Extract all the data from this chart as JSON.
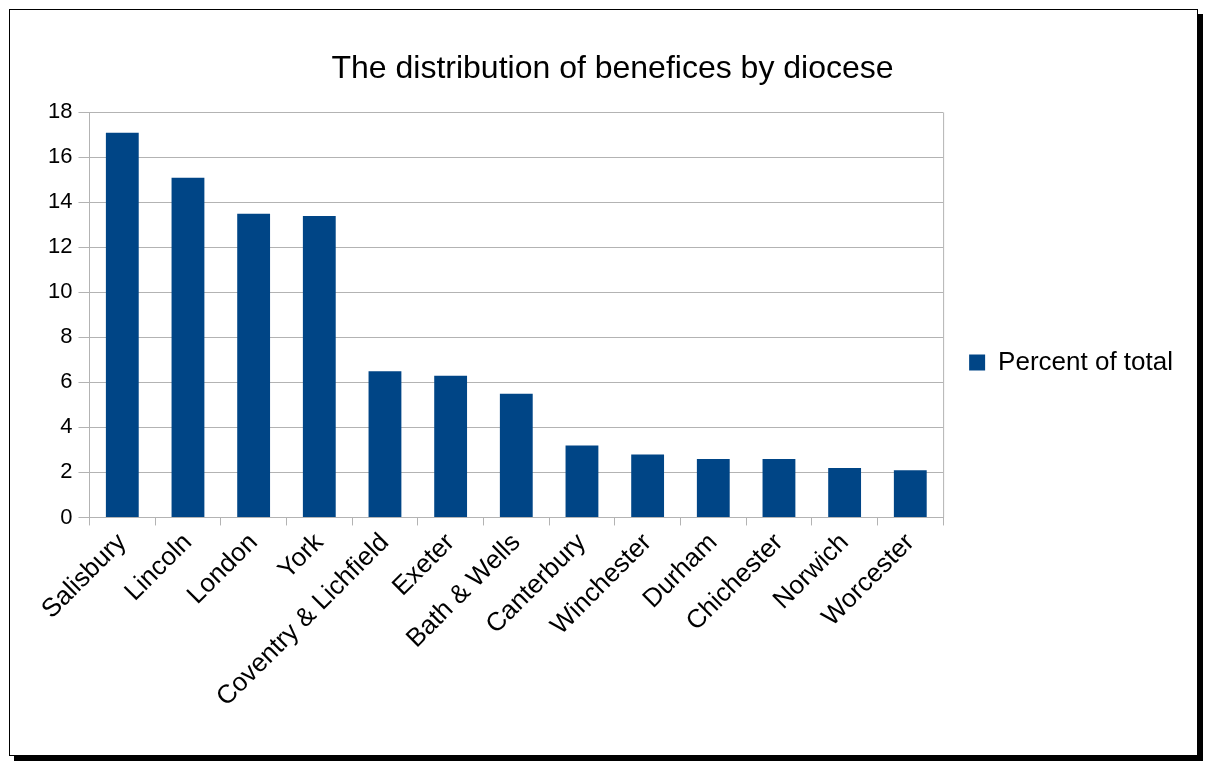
{
  "chart_data": {
    "type": "bar",
    "title": "The distribution of benefices by diocese",
    "categories": [
      "Salisbury",
      "Lincoln",
      "London",
      "York",
      "Coventry & Lichfield",
      "Exeter",
      "Bath & Wells",
      "Canterbury",
      "Winchester",
      "Durham",
      "Chichester",
      "Norwich",
      "Worcester"
    ],
    "series": [
      {
        "name": "Percent of total",
        "color": "#004586",
        "values": [
          17.1,
          15.1,
          13.5,
          13.4,
          6.5,
          6.3,
          5.5,
          3.2,
          2.8,
          2.6,
          2.6,
          2.2,
          2.1
        ]
      }
    ],
    "ylim": [
      0,
      18
    ],
    "yticks": [
      0,
      2,
      4,
      6,
      8,
      10,
      12,
      14,
      16,
      18
    ],
    "grid": "y",
    "legend": "right"
  }
}
